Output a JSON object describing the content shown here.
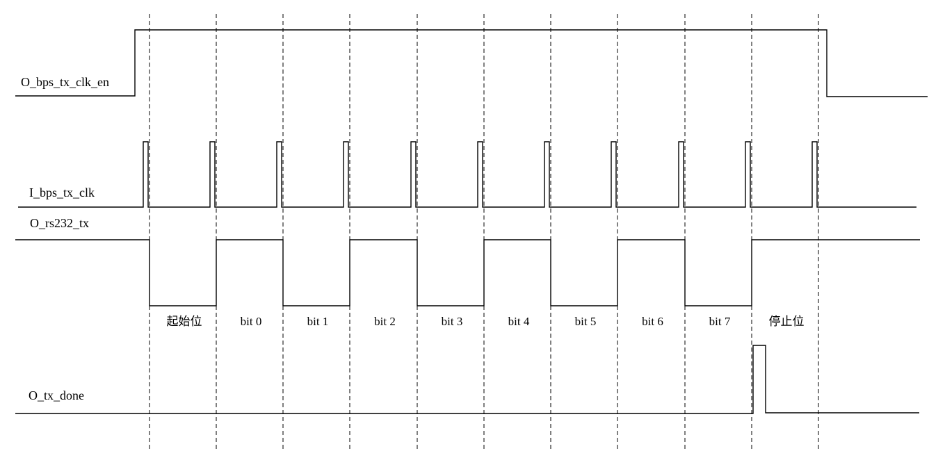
{
  "signals": [
    {
      "key": "bps_en",
      "name": "O_bps_tx_clk_en"
    },
    {
      "key": "bps_clk",
      "name": "I_bps_tx_clk"
    },
    {
      "key": "rs232_tx",
      "name": "O_rs232_tx"
    },
    {
      "key": "tx_done",
      "name": "O_tx_done"
    }
  ],
  "bit_labels": [
    "起始位",
    "bit 0",
    "bit 1",
    "bit 2",
    "bit 3",
    "bit 4",
    "bit 5",
    "bit 6",
    "bit 7",
    "停止位"
  ],
  "tx_levels": [
    0,
    1,
    0,
    1,
    0,
    1,
    0,
    1,
    0,
    1
  ]
}
